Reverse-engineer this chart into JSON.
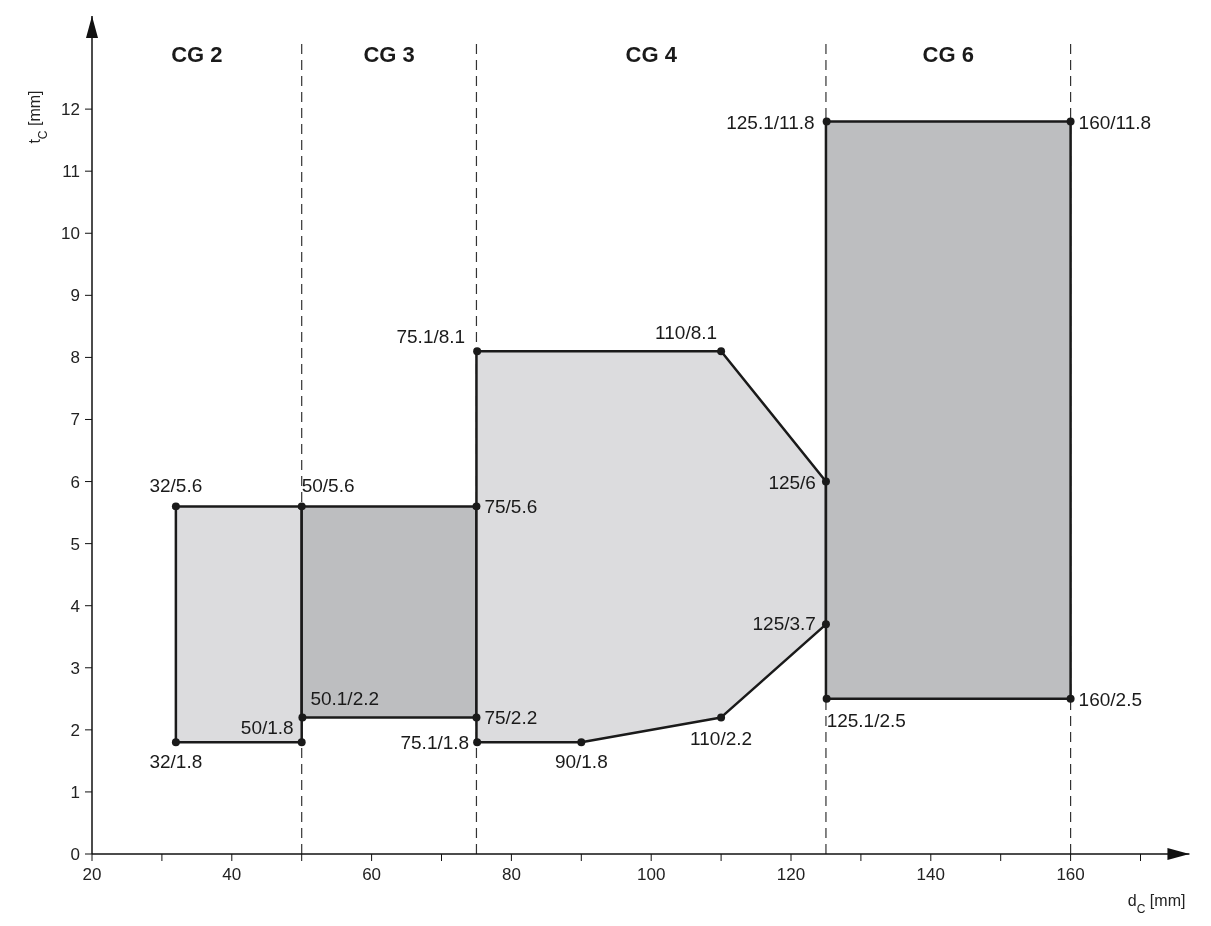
{
  "chart_data": {
    "type": "area",
    "xlabel": "d$_{C}$ [mm]",
    "ylabel": "t$_{C}$ [mm]",
    "xlim": [
      20,
      177
    ],
    "ylim": [
      0,
      13.5
    ],
    "xticks": [
      20,
      {
        "value": 30,
        "label": null
      },
      40,
      {
        "value": 50,
        "label": null
      },
      60,
      {
        "value": 70,
        "label": null
      },
      80,
      {
        "value": 90,
        "label": null
      },
      100,
      {
        "value": 110,
        "label": null
      },
      120,
      {
        "value": 130,
        "label": null
      },
      140,
      {
        "value": 150,
        "label": null
      },
      160,
      {
        "value": 170,
        "label": null
      }
    ],
    "yticks": [
      0,
      1,
      2,
      3,
      4,
      5,
      6,
      7,
      8,
      9,
      10,
      11,
      12
    ],
    "series": [
      {
        "color": "#dcdcde",
        "x": [
          32,
          32,
          50,
          50
        ],
        "values": [
          1.8,
          5.6,
          5.6,
          1.8
        ]
      },
      {
        "color": "#bdbec0",
        "x": [
          50,
          50,
          75,
          75
        ],
        "values": [
          2.2,
          5.6,
          5.6,
          2.2
        ]
      },
      {
        "color": "#dcdcde",
        "x": [
          75,
          75,
          110,
          125,
          125,
          110,
          90,
          75
        ],
        "values": [
          1.8,
          8.1,
          8.1,
          6,
          3.7,
          2.2,
          1.8,
          1.8
        ]
      },
      {
        "color": "#bdbec0",
        "x": [
          125,
          125,
          160,
          160
        ],
        "values": [
          2.5,
          11.8,
          11.8,
          2.5
        ]
      },
      {
        "type": "scatter",
        "marker": "circle",
        "color": "#1a1a1a",
        "x": [
          32,
          50,
          75,
          32,
          50,
          50.1,
          75,
          75.1,
          90,
          110,
          125,
          125,
          110,
          75.1,
          125.1,
          160,
          125.1,
          160
        ],
        "values": [
          5.6,
          5.6,
          5.6,
          1.8,
          1.8,
          2.2,
          2.2,
          1.8,
          1.8,
          2.2,
          3.7,
          6,
          8.1,
          8.1,
          11.8,
          11.8,
          2.5,
          2.5
        ],
        "value_labels": [
          "32/5.6",
          "50/5.6",
          "75/5.6",
          "32/1.8",
          "50/1.8",
          "50.1/2.2",
          "75/2.2",
          "75.1/1.8",
          "90/1.8",
          "110/2.2",
          "125/3.7",
          "125/6",
          "110/8.1",
          "75.1/8.1",
          "125.1/11.8",
          "160/11.8",
          "125.1/2.5",
          "160/2.5"
        ]
      }
    ],
    "ref_lines": [
      {
        "axis": "x",
        "value": 50,
        "line_style": "dashed"
      },
      {
        "axis": "x",
        "value": 75,
        "line_style": "dashed"
      },
      {
        "axis": "x",
        "value": 125,
        "line_style": "dashed"
      },
      {
        "axis": "x",
        "value": 160,
        "line_style": "dashed"
      }
    ],
    "annotations": [
      "CG 2",
      "CG 3",
      "CG 4",
      "CG 6"
    ]
  }
}
